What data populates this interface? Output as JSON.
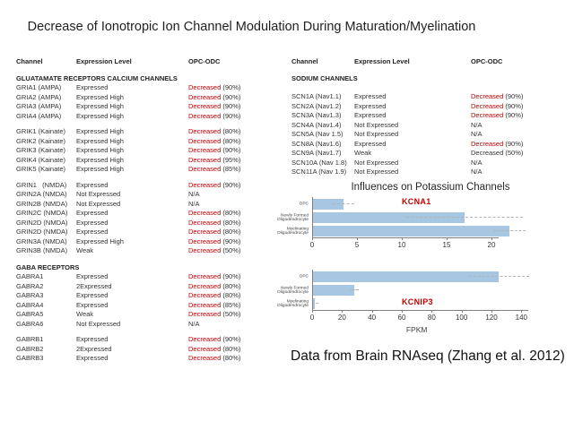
{
  "title": "Decrease of Ionotropic Ion Channel Modulation During Maturation/Myelination",
  "footer": "Data from Brain RNAseq (Zhang et al. 2012)",
  "potassium_heading": "Influences on Potassium Channels",
  "colors": {
    "decreased_red": "#C00000",
    "bar_blue": "#A7C6E2",
    "axis_gray": "#808080"
  },
  "left_table": {
    "headers": {
      "channel": "Channel",
      "expression": "Expression Level",
      "change": "OPC-ODC"
    },
    "sections": [
      {
        "header": "GLUATAMATE RECEPTORS CALCIUM CHANNELS",
        "groups": [
          [
            {
              "channel": "GRIA1 (AMPA)",
              "expression": "Expressed",
              "status": "Decreased",
              "pct": "(90%)",
              "red": true
            },
            {
              "channel": "GRIA2 (AMPA)",
              "expression": "Expressed High",
              "status": "Decreased",
              "pct": "(90%)",
              "red": true
            },
            {
              "channel": "GRIA3 (AMPA)",
              "expression": "Expressed High",
              "status": "Decreased",
              "pct": "(90%)",
              "red": true
            },
            {
              "channel": "GRIA4 (AMPA)",
              "expression": "Expressed High",
              "status": "Decreased",
              "pct": "(90%)",
              "red": true
            }
          ],
          [
            {
              "channel": "GRIK1 (Kainate)",
              "expression": "Expressed High",
              "status": "Decreased",
              "pct": "(80%)",
              "red": true
            },
            {
              "channel": "GRIK2 (Kainate)",
              "expression": "Expressed High",
              "status": "Decreased",
              "pct": "(80%)",
              "red": true
            },
            {
              "channel": "GRIK3 (Kainate)",
              "expression": "Expressed High",
              "status": "Decreased",
              "pct": "(90%)",
              "red": true
            },
            {
              "channel": "GRIK4 (Kainate)",
              "expression": "Expressed High",
              "status": "Decreased",
              "pct": "(95%)",
              "red": true
            },
            {
              "channel": "GRIK5 (Kainate)",
              "expression": "Expressed High",
              "status": "Decreased",
              "pct": "(85%)",
              "red": true
            }
          ],
          [
            {
              "channel": "GRIN1   (NMDA)",
              "expression": "Expressed",
              "status": "Decreased",
              "pct": "(90%)",
              "red": true
            },
            {
              "channel": "GRIN2A (NMDA)",
              "expression": "Not Expressed",
              "status": "N/A",
              "pct": "",
              "red": false
            },
            {
              "channel": "GRIN2B (NMDA)",
              "expression": "Not Expressed",
              "status": "N/A",
              "pct": "",
              "red": false
            },
            {
              "channel": "GRIN2C (NMDA)",
              "expression": "Expressed",
              "status": "Decreased",
              "pct": "(80%)",
              "red": true
            },
            {
              "channel": "GRIN2D (NMDA)",
              "expression": "Expressed",
              "status": "Decreased",
              "pct": "(80%)",
              "red": true
            },
            {
              "channel": "GRIN2D (NMDA)",
              "expression": "Expressed",
              "status": "Decreased",
              "pct": "(80%)",
              "red": true
            },
            {
              "channel": "GRIN3A (NMDA)",
              "expression": "Expressed High",
              "status": "Decreased",
              "pct": "(90%)",
              "red": true
            },
            {
              "channel": "GRIN3B (NMDA)",
              "expression": "Weak",
              "status": "Decreased",
              "pct": "(50%)",
              "red": true
            }
          ]
        ]
      },
      {
        "header": "GABA RECEPTORS",
        "groups": [
          [
            {
              "channel": "GABRA1",
              "expression": "Expressed",
              "status": "Decreased",
              "pct": "(90%)",
              "red": true
            },
            {
              "channel": "GABRA2",
              "expression": "2Expressed",
              "status": "Decreased",
              "pct": "(80%)",
              "red": true
            },
            {
              "channel": "GABRA3",
              "expression": "Expressed",
              "status": "Decreased",
              "pct": "(80%)",
              "red": true
            },
            {
              "channel": "GABRA4",
              "expression": "Expressed",
              "status": "Decreased",
              "pct": "(85%)",
              "red": true
            },
            {
              "channel": "GABRA5",
              "expression": "Weak",
              "status": "Decreased",
              "pct": "(50%)",
              "red": true
            },
            {
              "channel": "GABRA6",
              "expression": "Not Expressed",
              "status": "N/A",
              "pct": "",
              "red": false
            }
          ],
          [
            {
              "channel": "GABRB1",
              "expression": "Expressed",
              "status": "Decreased",
              "pct": "(90%)",
              "red": true
            },
            {
              "channel": "GABRB2",
              "expression": "2Expressed",
              "status": "Decreased",
              "pct": "(80%)",
              "red": true
            },
            {
              "channel": "GABRB3",
              "expression": "Expressed",
              "status": "Decreased",
              "pct": "(80%)",
              "red": true
            }
          ]
        ]
      }
    ]
  },
  "right_table": {
    "headers": {
      "channel": "Channel",
      "expression": "Expression Level",
      "change": "OPC-ODC"
    },
    "sections": [
      {
        "header": "SODIUM CHANNELS",
        "groups": [
          [
            {
              "channel": "SCN1A (Nav1.1)",
              "expression": "Expressed",
              "status": "Decreased",
              "pct": "(90%)",
              "red": true
            },
            {
              "channel": "SCN2A (Nav1.2)",
              "expression": "Expressed",
              "status": "Decreased",
              "pct": "(90%)",
              "red": true
            },
            {
              "channel": "SCN3A (Nav1.3)",
              "expression": "Expressed",
              "status": "Decreased",
              "pct": "(90%)",
              "red": true
            },
            {
              "channel": "SCN4A (Nav1.4)",
              "expression": "Not Expressed",
              "status": "N/A",
              "pct": "",
              "red": false
            },
            {
              "channel": "SCN5A (Nav 1.5)",
              "expression": "Not Expressed",
              "status": "N/A",
              "pct": "",
              "red": false
            },
            {
              "channel": "SCN8A (Nav1.6)",
              "expression": "Expressed",
              "status": "Decreased",
              "pct": "(90%)",
              "red": true
            },
            {
              "channel": "SCN9A (Nav1.7)",
              "expression": "Weak",
              "status": "Decreased",
              "pct": "(50%)",
              "red": false
            },
            {
              "channel": "SCN10A (Nav 1.8)",
              "expression": "Not Expressed",
              "status": "N/A",
              "pct": "",
              "red": false
            },
            {
              "channel": "SCN11A (Nav 1.9)",
              "expression": "Not Expressed",
              "status": "N/A",
              "pct": "",
              "red": false
            }
          ]
        ]
      }
    ]
  },
  "chart_data": [
    {
      "type": "bar",
      "orientation": "horizontal",
      "label": "KCNA1",
      "title": "Influences on Potassium Channels",
      "categories": [
        "OPC",
        "Newly Formed Oligodendrocyte",
        "Myelinating Oligodendrocyte"
      ],
      "values": [
        3.5,
        17,
        22
      ],
      "errors": [
        1.2,
        6.5,
        1.8
      ],
      "xticks": [
        0,
        5,
        10,
        15,
        20
      ],
      "xlim": [
        0,
        25
      ],
      "xlabel": ""
    },
    {
      "type": "bar",
      "orientation": "horizontal",
      "label": "KCNIP3",
      "categories": [
        "OPC",
        "Newly Formed Oligodendrocyte",
        "Myelinating Oligodendrocyte"
      ],
      "values": [
        125,
        28,
        2
      ],
      "errors": [
        20,
        3,
        2
      ],
      "xticks": [
        0,
        20,
        40,
        60,
        80,
        100,
        120,
        140
      ],
      "xlim": [
        0,
        150
      ],
      "xlabel": "FPKM"
    }
  ]
}
